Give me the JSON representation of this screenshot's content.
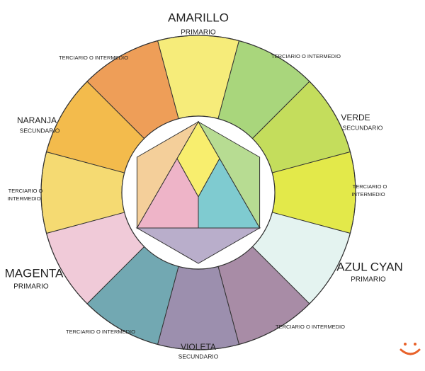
{
  "title": {
    "name": "AMARILLO",
    "role": "PRIMARIO"
  },
  "labels": {
    "top_left_tertiary": "TERCIARIO O INTERMEDIO",
    "top_right_tertiary": "TERCIARIO O INTERMEDIO",
    "orange": {
      "name": "NARANJA",
      "role": "SECUNDARIO"
    },
    "green": {
      "name": "VERDE",
      "role": "SECUNDARIO"
    },
    "left_tertiary": [
      "TERCIARIO O",
      "INTERMEDIO"
    ],
    "right_tertiary": [
      "TERCIARIO O",
      "INTERMEDIO"
    ],
    "magenta": {
      "name": "MAGENTA",
      "role": "PRIMARIO"
    },
    "cyan": {
      "name": "AZUL CYAN",
      "role": "PRIMARIO"
    },
    "bottom_left_tertiary": "TERCIARIO O INTERMEDIO",
    "bottom_right_tertiary": "TERCIARIO O INTERMEDIO",
    "violet": {
      "name": "VIOLETA",
      "role": "SECUNDARIO"
    }
  }
}
